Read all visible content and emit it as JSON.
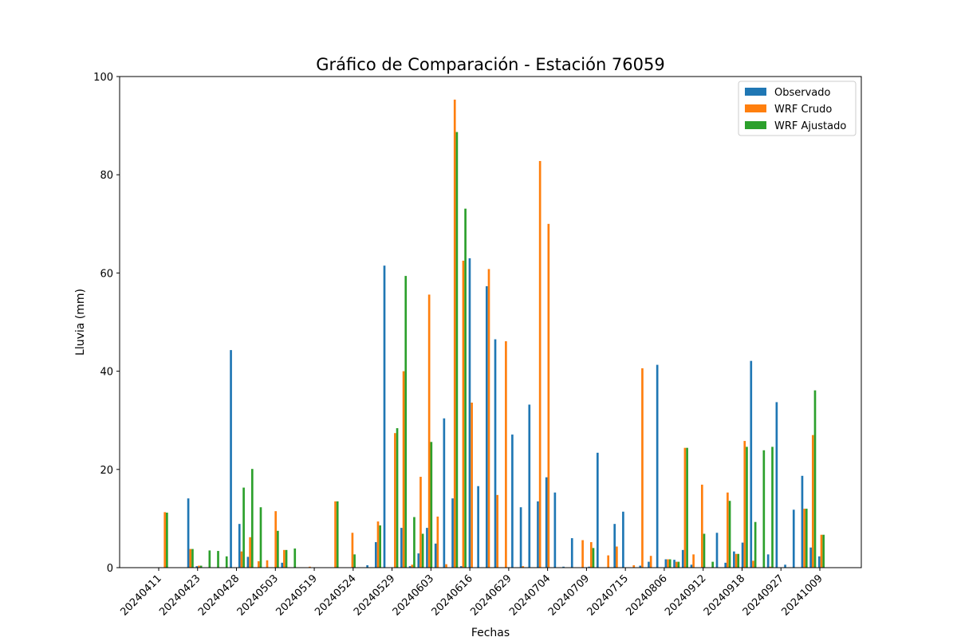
{
  "chart_data": {
    "type": "bar",
    "title": "Gráfico de Comparación - Estación 76059",
    "xlabel": "Fechas",
    "ylabel": "Lluvia (mm)",
    "ylim": [
      0,
      100
    ],
    "yticks": [
      0,
      20,
      40,
      60,
      80,
      100
    ],
    "xtick_labels": [
      "20240411",
      "20240423",
      "20240428",
      "20240503",
      "20240519",
      "20240524",
      "20240529",
      "20240603",
      "20240616",
      "20240629",
      "20240704",
      "20240709",
      "20240715",
      "20240806",
      "20240912",
      "20240918",
      "20240927",
      "20241009"
    ],
    "legend_position": "top-right",
    "colors": [
      "#1f77b4",
      "#ff7f0e",
      "#2ca02c"
    ],
    "series": [
      {
        "name": "Observado",
        "values": [
          0,
          0,
          0,
          0,
          14.1,
          0.3,
          0,
          0,
          0,
          44.3,
          8.9,
          2.2,
          0,
          0,
          0,
          1.0,
          0,
          0,
          0,
          0,
          0,
          0,
          0,
          0,
          0,
          0.5,
          5.2,
          61.5,
          0,
          8.1,
          0.3,
          2.9,
          8.1,
          4.9,
          30.4,
          14.1,
          0.3,
          63.0,
          16.6,
          57.3,
          46.5,
          0,
          27.1,
          12.3,
          33.2,
          13.5,
          18.4,
          15.3,
          0.2,
          6.0,
          0,
          0.2,
          23.4,
          0,
          8.9,
          11.4,
          0,
          0.4,
          1.2,
          41.3,
          1.7,
          1.6,
          3.6,
          0.6,
          0,
          0,
          7.1,
          1.0,
          3.3,
          5.1,
          42.1,
          0,
          2.7,
          33.7,
          0.6,
          11.8,
          18.7,
          4.1,
          2.3
        ]
      },
      {
        "name": "WRF Crudo",
        "values": [
          0,
          11.3,
          0,
          0,
          3.8,
          0.4,
          0,
          0,
          0,
          0,
          3.3,
          6.2,
          1.3,
          1.5,
          11.5,
          3.6,
          0,
          0,
          0.2,
          0,
          0,
          13.5,
          0,
          7.1,
          0,
          0,
          9.4,
          0,
          27.4,
          40.0,
          0.6,
          18.5,
          55.6,
          10.4,
          0.7,
          95.3,
          62.5,
          33.6,
          0,
          60.8,
          14.8,
          46.1,
          0,
          0.3,
          0,
          82.8,
          70.0,
          0,
          0,
          0,
          5.6,
          5.2,
          0,
          2.5,
          4.3,
          0,
          0.5,
          40.6,
          2.4,
          0,
          1.7,
          1.2,
          24.4,
          2.7,
          16.9,
          0,
          0,
          15.3,
          2.8,
          25.8,
          1.4,
          0,
          0.2,
          0,
          0,
          0,
          12.0,
          27.0,
          6.7
        ]
      },
      {
        "name": "WRF Ajustado",
        "values": [
          0,
          11.2,
          0,
          0,
          3.8,
          0.4,
          3.5,
          3.4,
          2.3,
          0,
          16.3,
          20.1,
          12.3,
          0,
          7.5,
          3.6,
          3.9,
          0,
          0,
          0,
          0,
          13.5,
          0,
          2.7,
          0,
          0,
          8.6,
          0,
          28.4,
          59.4,
          10.3,
          6.9,
          25.6,
          0,
          0,
          88.7,
          73.1,
          0,
          0,
          0,
          0,
          0,
          0,
          0,
          0,
          0,
          0,
          0,
          0,
          0,
          0,
          4.0,
          0,
          0,
          0,
          0,
          0,
          0,
          0,
          0,
          1.7,
          1.2,
          24.4,
          0,
          6.9,
          1.2,
          0,
          13.6,
          2.8,
          24.6,
          9.3,
          23.9,
          24.6,
          0,
          0,
          0,
          12.0,
          36.1,
          6.7
        ]
      }
    ]
  }
}
